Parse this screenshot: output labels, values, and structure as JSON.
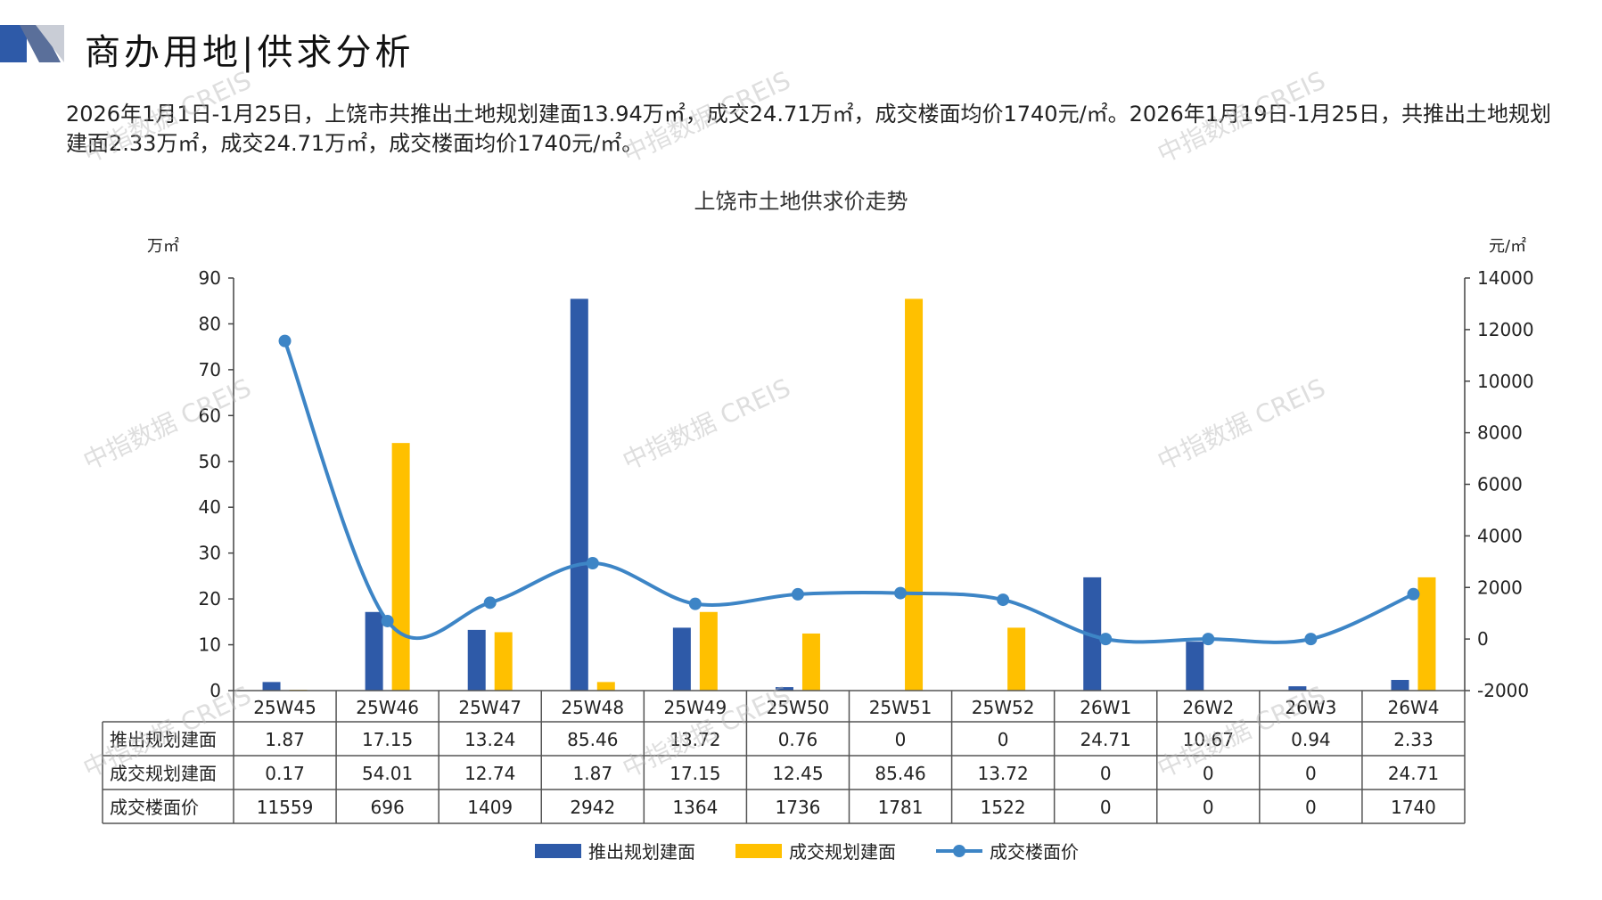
{
  "header": {
    "title": "商办用地|供求分析"
  },
  "summary": {
    "text": "2026年1月1日-1月25日，上饶市共推出土地规划建面13.94万㎡，成交24.71万㎡，成交楼面均价1740元/㎡。2026年1月19日-1月25日，共推出土地规划建面2.33万㎡，成交24.71万㎡，成交楼面均价1740元/㎡。"
  },
  "watermark": "中指数据 CREIS",
  "colors": {
    "supply": "#2E5AA8",
    "deal": "#FFC000",
    "price": "#3D85C6",
    "axis": "#444444"
  },
  "chart_data": {
    "type": "bar",
    "title": "上饶市土地供求价走势",
    "y_left_unit": "万㎡",
    "y_right_unit": "元/㎡",
    "ylim_left": [
      0,
      90
    ],
    "yticks_left": [
      "90",
      "80",
      "70",
      "60",
      "50",
      "40",
      "30",
      "20",
      "10",
      "0"
    ],
    "ylim_right": [
      -2000,
      14000
    ],
    "yticks_right": [
      "14000",
      "12000",
      "10000",
      "8000",
      "6000",
      "4000",
      "2000",
      "0",
      "-2000"
    ],
    "categories": [
      "25W45",
      "25W46",
      "25W47",
      "25W48",
      "25W49",
      "25W50",
      "25W51",
      "25W52",
      "26W1",
      "26W2",
      "26W3",
      "26W4"
    ],
    "series": [
      {
        "name": "推出规划建面",
        "type": "bar",
        "axis": "left",
        "values": [
          1.87,
          17.15,
          13.24,
          85.46,
          13.72,
          0.76,
          0,
          0,
          24.71,
          10.67,
          0.94,
          2.33
        ],
        "labels": [
          "1.87",
          "17.15",
          "13.24",
          "85.46",
          "13.72",
          "0.76",
          "0",
          "0",
          "24.71",
          "10.67",
          "0.94",
          "2.33"
        ]
      },
      {
        "name": "成交规划建面",
        "type": "bar",
        "axis": "left",
        "values": [
          0.17,
          54.01,
          12.74,
          1.87,
          17.15,
          12.45,
          85.46,
          13.72,
          0,
          0,
          0,
          24.71
        ],
        "labels": [
          "0.17",
          "54.01",
          "12.74",
          "1.87",
          "17.15",
          "12.45",
          "85.46",
          "13.72",
          "0",
          "0",
          "0",
          "24.71"
        ]
      },
      {
        "name": "成交楼面价",
        "type": "line",
        "axis": "right",
        "values": [
          11559,
          696,
          1409,
          2942,
          1364,
          1736,
          1781,
          1522,
          0,
          0,
          0,
          1740
        ],
        "labels": [
          "11559",
          "696",
          "1409",
          "2942",
          "1364",
          "1736",
          "1781",
          "1522",
          "0",
          "0",
          "0",
          "1740"
        ]
      }
    ],
    "legend_position": "bottom",
    "data_table": true
  }
}
